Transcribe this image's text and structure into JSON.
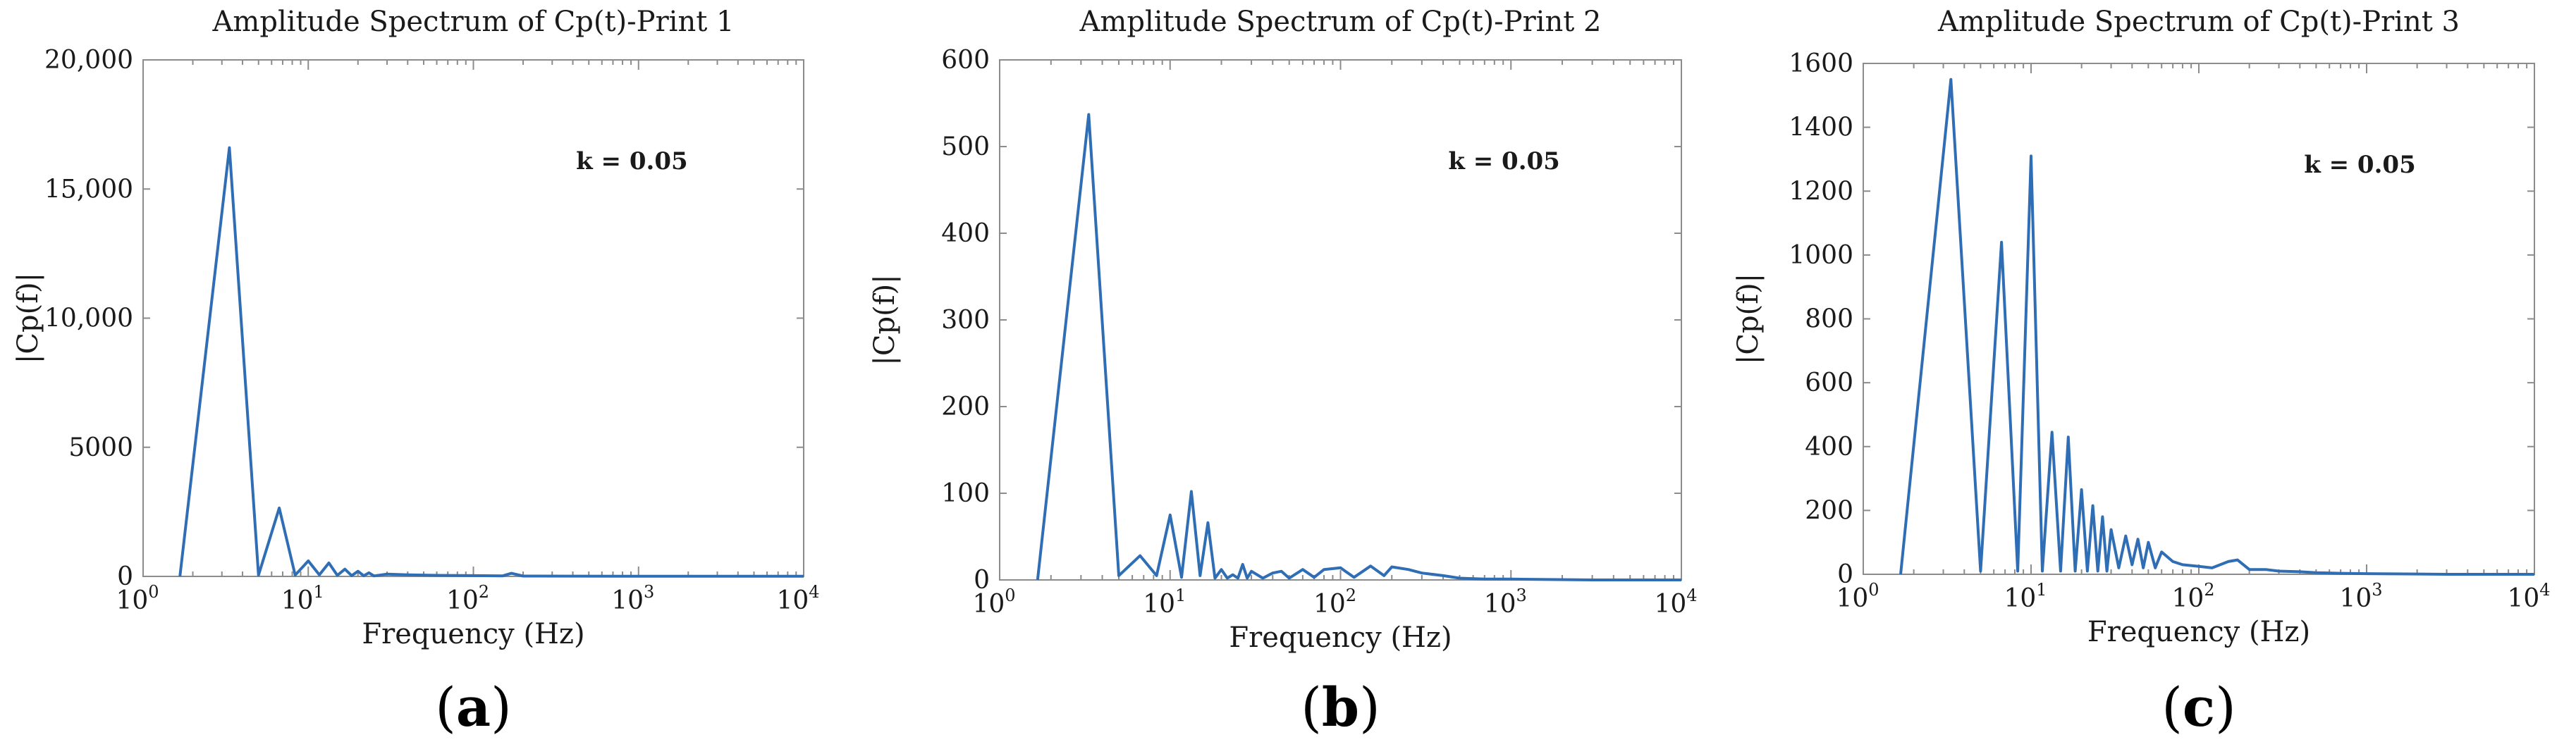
{
  "chart_data": [
    {
      "type": "line",
      "title": "Amplitude Spectrum of Cp(t)-Print 1",
      "xlabel": "Frequency (Hz)",
      "ylabel": "|Cp(f)|",
      "xscale": "log",
      "xlim": [
        1,
        10000
      ],
      "ylim": [
        0,
        20000
      ],
      "grid": false,
      "xticks": [
        {
          "value": 1,
          "base": "10",
          "exp": "0"
        },
        {
          "value": 10,
          "base": "10",
          "exp": "1"
        },
        {
          "value": 100,
          "base": "10",
          "exp": "2"
        },
        {
          "value": 1000,
          "base": "10",
          "exp": "3"
        },
        {
          "value": 10000,
          "base": "10",
          "exp": "4"
        }
      ],
      "yticks": [
        {
          "value": 0,
          "label": "0"
        },
        {
          "value": 5000,
          "label": "5000"
        },
        {
          "value": 10000,
          "label": "10,000"
        },
        {
          "value": 15000,
          "label": "15,000"
        },
        {
          "value": 20000,
          "label": "20,000"
        }
      ],
      "annotation": "k = 0.05",
      "panel_letter": "a",
      "series": [
        {
          "name": "|Cp(f)|",
          "color": "#2f6db5",
          "x": [
            1.67,
            3.33,
            5.0,
            6.67,
            8.33,
            10.0,
            11.67,
            13.33,
            15.0,
            16.67,
            18.33,
            20.0,
            21.67,
            23.33,
            25.0,
            30.0,
            40.0,
            60.0,
            100.0,
            150.0,
            170.0,
            200.0,
            400.0,
            1000.0,
            3000.0,
            10000.0
          ],
          "y": [
            0,
            16600,
            50,
            2650,
            50,
            600,
            60,
            520,
            40,
            280,
            30,
            200,
            25,
            140,
            20,
            90,
            60,
            40,
            30,
            20,
            120,
            15,
            10,
            5,
            5,
            5
          ]
        }
      ]
    },
    {
      "type": "line",
      "title": "Amplitude Spectrum of Cp(t)-Print 2",
      "xlabel": "Frequency (Hz)",
      "ylabel": "|Cp(f)|",
      "xscale": "log",
      "xlim": [
        1,
        10000
      ],
      "ylim": [
        0,
        600
      ],
      "grid": false,
      "xticks": [
        {
          "value": 1,
          "base": "10",
          "exp": "0"
        },
        {
          "value": 10,
          "base": "10",
          "exp": "1"
        },
        {
          "value": 100,
          "base": "10",
          "exp": "2"
        },
        {
          "value": 1000,
          "base": "10",
          "exp": "3"
        },
        {
          "value": 10000,
          "base": "10",
          "exp": "4"
        }
      ],
      "yticks": [
        {
          "value": 0,
          "label": "0"
        },
        {
          "value": 100,
          "label": "100"
        },
        {
          "value": 200,
          "label": "200"
        },
        {
          "value": 300,
          "label": "300"
        },
        {
          "value": 400,
          "label": "400"
        },
        {
          "value": 500,
          "label": "500"
        },
        {
          "value": 600,
          "label": "600"
        }
      ],
      "annotation": "k = 0.05",
      "panel_letter": "b",
      "series": [
        {
          "name": "|Cp(f)|",
          "color": "#2f6db5",
          "x": [
            1.67,
            3.33,
            5.0,
            6.67,
            8.33,
            10.0,
            11.67,
            13.33,
            15.0,
            16.67,
            18.33,
            20.0,
            21.67,
            23.33,
            25.0,
            26.67,
            28.33,
            30.0,
            35.0,
            40.0,
            45.0,
            50.0,
            60.0,
            70.0,
            80.0,
            100.0,
            120.0,
            150.0,
            180.0,
            200.0,
            250.0,
            300.0,
            400.0,
            500.0,
            700.0,
            1000.0,
            3000.0,
            10000.0
          ],
          "y": [
            0,
            537,
            5,
            28,
            5,
            75,
            3,
            102,
            5,
            66,
            2,
            12,
            2,
            6,
            2,
            18,
            2,
            10,
            2,
            8,
            10,
            2,
            12,
            3,
            12,
            14,
            3,
            16,
            5,
            15,
            12,
            8,
            5,
            2,
            1,
            1,
            0,
            0
          ]
        }
      ]
    },
    {
      "type": "line",
      "title": "Amplitude Spectrum of Cp(t)-Print 3",
      "xlabel": "Frequency (Hz)",
      "ylabel": "|Cp(f)|",
      "xscale": "log",
      "xlim": [
        1,
        10000
      ],
      "ylim": [
        0,
        1600
      ],
      "grid": false,
      "xticks": [
        {
          "value": 1,
          "base": "10",
          "exp": "0"
        },
        {
          "value": 10,
          "base": "10",
          "exp": "1"
        },
        {
          "value": 100,
          "base": "10",
          "exp": "2"
        },
        {
          "value": 1000,
          "base": "10",
          "exp": "3"
        },
        {
          "value": 10000,
          "base": "10",
          "exp": "4"
        }
      ],
      "yticks": [
        {
          "value": 0,
          "label": "0"
        },
        {
          "value": 200,
          "label": "200"
        },
        {
          "value": 400,
          "label": "400"
        },
        {
          "value": 600,
          "label": "600"
        },
        {
          "value": 800,
          "label": "800"
        },
        {
          "value": 1000,
          "label": "1000"
        },
        {
          "value": 1200,
          "label": "1200"
        },
        {
          "value": 1400,
          "label": "1400"
        },
        {
          "value": 1600,
          "label": "1600"
        }
      ],
      "annotation": "k = 0.05",
      "panel_letter": "c",
      "series": [
        {
          "name": "|Cp(f)|",
          "color": "#2f6db5",
          "x": [
            1.67,
            3.33,
            5.0,
            6.67,
            8.33,
            10.0,
            11.67,
            13.33,
            15.0,
            16.67,
            18.33,
            20.0,
            21.67,
            23.33,
            25.0,
            26.67,
            28.33,
            30.0,
            33.33,
            36.67,
            40.0,
            43.33,
            46.67,
            50.0,
            55.0,
            60.0,
            70.0,
            80.0,
            100.0,
            120.0,
            150.0,
            170.0,
            200.0,
            250.0,
            300.0,
            400.0,
            500.0,
            700.0,
            1000.0,
            3000.0,
            10000.0
          ],
          "y": [
            0,
            1550,
            10,
            1040,
            10,
            1310,
            10,
            445,
            10,
            430,
            10,
            265,
            10,
            215,
            10,
            180,
            10,
            140,
            20,
            120,
            30,
            110,
            20,
            100,
            20,
            70,
            40,
            30,
            25,
            20,
            40,
            45,
            15,
            15,
            10,
            8,
            5,
            3,
            2,
            0,
            0
          ]
        }
      ]
    }
  ]
}
